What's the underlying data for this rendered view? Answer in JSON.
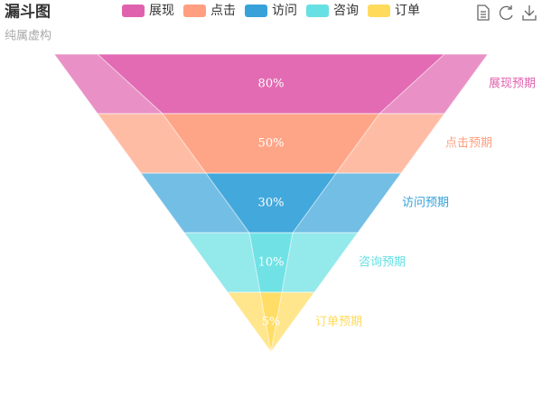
{
  "chart_data": {
    "type": "funnel",
    "title": "漏斗图",
    "subtitle": "纯属虚构",
    "categories": [
      "展现",
      "点击",
      "访问",
      "咨询",
      "订单"
    ],
    "colors": [
      "#e062ae",
      "#ff9f7f",
      "#37a2da",
      "#67e0e3",
      "#ffdb5c"
    ],
    "min": 0,
    "max": 100,
    "series": [
      {
        "values": [
          100,
          80,
          60,
          40,
          20
        ],
        "labels": [
          "展现预期",
          "点击预期",
          "访问预期",
          "咨询预期",
          "订单预期"
        ]
      },
      {
        "values": [
          80,
          50,
          30,
          10,
          5
        ],
        "value_labels": [
          "80%",
          "50%",
          "30%",
          "10%",
          "5%"
        ]
      }
    ]
  }
}
